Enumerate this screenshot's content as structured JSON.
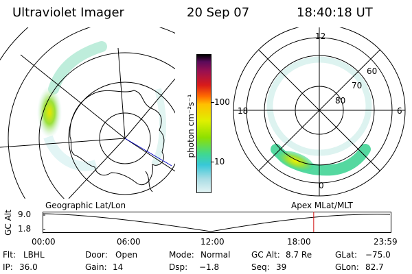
{
  "header": {
    "title": "Ultraviolet Imager",
    "date": "20 Sep 07",
    "time": "18:40:18 UT"
  },
  "colorbar": {
    "unit_label": "photon cm⁻²s⁻¹",
    "ticks": [
      "100",
      "10"
    ]
  },
  "geo_panel": {
    "label": "Geographic Lat/Lon"
  },
  "mag_panel": {
    "label": "Apex MLat/MLT",
    "mlt": {
      "top": "12",
      "left": "18",
      "right": "6",
      "bottom": "0"
    },
    "lat_labels": [
      "60",
      "70",
      "80"
    ]
  },
  "altitude_plot": {
    "ylabel": "GC Alt",
    "y_ticks": [
      "9.0",
      "1.8"
    ],
    "x_ticks": [
      "00:00",
      "06:00",
      "12:00",
      "18:00",
      "23:59"
    ],
    "current_marker_time": "18:40",
    "marker_color": "#d01010"
  },
  "info": {
    "row1": [
      {
        "label": "Flt:",
        "value": "LBHL"
      },
      {
        "label": "Door:",
        "value": "Open"
      },
      {
        "label": "Mode:",
        "value": "Normal"
      },
      {
        "label": "GC Alt:",
        "value": "8.7 Re"
      },
      {
        "label": "GLat:",
        "value": "−75.0"
      }
    ],
    "row2": [
      {
        "label": "IP:",
        "value": "36.0"
      },
      {
        "label": "Gain:",
        "value": "14"
      },
      {
        "label": "Dsp:",
        "value": "−1.8"
      },
      {
        "label": "Seq:",
        "value": "39"
      },
      {
        "label": "GLon:",
        "value": "82.7"
      }
    ]
  }
}
